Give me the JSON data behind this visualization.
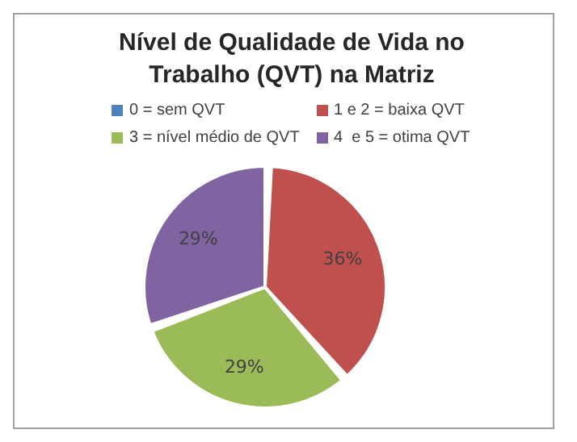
{
  "chart_data": {
    "type": "pie",
    "title": "Nível de Qualidade de Vida no Trabalho (QVT) na Matriz",
    "categories": [
      "0 = sem QVT",
      "1 e 2 = baixa QVT",
      "3 = nível médio de QVT",
      "4  e 5 = otima QVT"
    ],
    "values": [
      0,
      36,
      29,
      29
    ],
    "value_labels": [
      null,
      "36%",
      "29%",
      "29%"
    ],
    "colors": [
      "#4f81bd",
      "#c0504d",
      "#9bbb59",
      "#8064a2"
    ],
    "legend": "top"
  }
}
